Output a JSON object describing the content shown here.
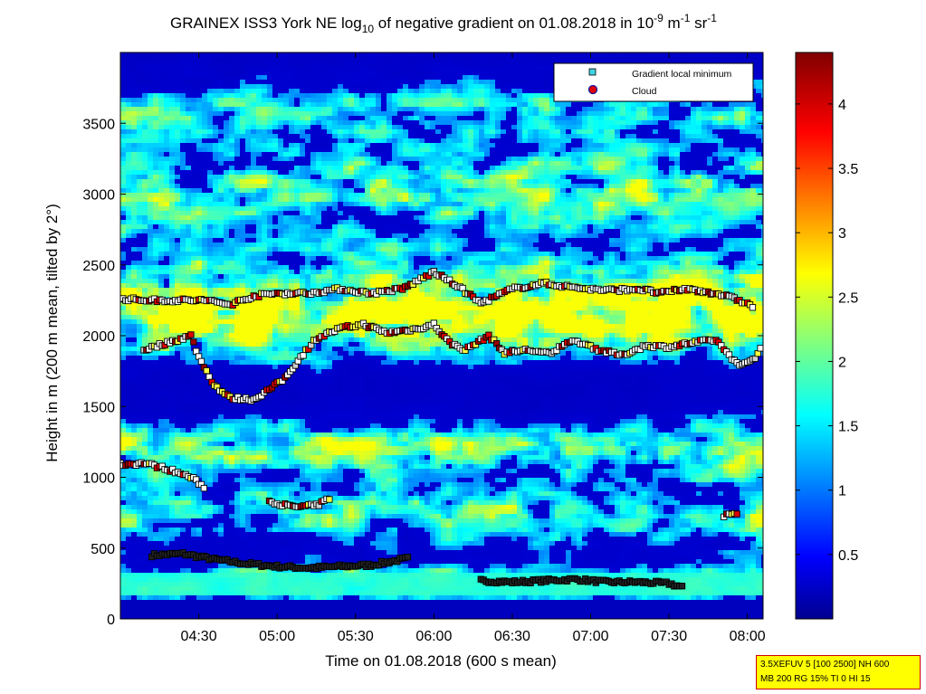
{
  "chart_data": {
    "type": "heatmap",
    "title": {
      "prefix": "GRAINEX ISS3 York NE log",
      "subscript": "10",
      "middle": " of negative gradient on 01.08.2018 in 10",
      "sup1": "-9",
      "middle2": " m",
      "sup2": "-1",
      "middle3": " sr",
      "sup3": "-1"
    },
    "xlabel": "Time on 01.08.2018 (600 s mean)",
    "ylabel": "Height in m (200 m mean, tilted by 2°)",
    "x_range_hours": [
      4.0,
      8.1
    ],
    "x_ticks": [
      {
        "value": 4.5,
        "label": "04:30"
      },
      {
        "value": 5.0,
        "label": "05:00"
      },
      {
        "value": 5.5,
        "label": "05:30"
      },
      {
        "value": 6.0,
        "label": "06:00"
      },
      {
        "value": 6.5,
        "label": "06:30"
      },
      {
        "value": 7.0,
        "label": "07:00"
      },
      {
        "value": 7.5,
        "label": "07:30"
      },
      {
        "value": 8.0,
        "label": "08:00"
      }
    ],
    "ylim": [
      0,
      4000
    ],
    "y_ticks": [
      0,
      500,
      1000,
      1500,
      2000,
      2500,
      3000,
      3500
    ],
    "colorbar": {
      "range": [
        0,
        4.4
      ],
      "ticks": [
        0.5,
        1,
        1.5,
        2,
        2.5,
        3,
        3.5,
        4
      ],
      "colormap": "jet"
    },
    "legend": {
      "placement": "top-right",
      "entries": [
        {
          "label": "Gradient local minimum",
          "marker": "square",
          "color": "#3fd3e0"
        },
        {
          "label": "Cloud",
          "marker": "circle",
          "color": "#e00000"
        }
      ]
    },
    "layers": [
      {
        "name": "layer-1",
        "points": [
          [
            4.2,
            450
          ],
          [
            4.4,
            460
          ],
          [
            4.6,
            420
          ],
          [
            4.8,
            390
          ],
          [
            5.0,
            370
          ],
          [
            5.2,
            360
          ],
          [
            5.4,
            370
          ],
          [
            5.6,
            380
          ],
          [
            5.75,
            410
          ],
          [
            5.85,
            430
          ]
        ]
      },
      {
        "name": "layer-2",
        "points": [
          [
            6.3,
            270
          ],
          [
            6.5,
            260
          ],
          [
            6.7,
            270
          ],
          [
            6.9,
            280
          ],
          [
            7.1,
            260
          ],
          [
            7.3,
            260
          ],
          [
            7.5,
            250
          ],
          [
            7.6,
            220
          ]
        ]
      },
      {
        "name": "layer-3",
        "points": [
          [
            4.0,
            1090
          ],
          [
            4.15,
            1100
          ],
          [
            4.3,
            1060
          ],
          [
            4.45,
            1000
          ],
          [
            4.55,
            920
          ]
        ]
      },
      {
        "name": "layer-4",
        "points": [
          [
            4.95,
            830
          ],
          [
            5.1,
            790
          ],
          [
            5.25,
            800
          ],
          [
            5.35,
            860
          ]
        ]
      },
      {
        "name": "layer-5",
        "points": [
          [
            7.85,
            730
          ],
          [
            7.95,
            750
          ]
        ]
      },
      {
        "name": "layer-6",
        "points": [
          [
            4.15,
            1900
          ],
          [
            4.3,
            1950
          ],
          [
            4.45,
            2000
          ],
          [
            4.5,
            1850
          ],
          [
            4.6,
            1650
          ],
          [
            4.7,
            1560
          ],
          [
            4.85,
            1550
          ],
          [
            4.95,
            1620
          ],
          [
            5.05,
            1700
          ],
          [
            5.15,
            1850
          ],
          [
            5.25,
            1980
          ],
          [
            5.4,
            2050
          ],
          [
            5.55,
            2080
          ],
          [
            5.7,
            2020
          ],
          [
            5.9,
            2050
          ],
          [
            6.0,
            2080
          ],
          [
            6.1,
            1950
          ],
          [
            6.2,
            1900
          ],
          [
            6.35,
            2000
          ],
          [
            6.45,
            1880
          ],
          [
            6.6,
            1900
          ],
          [
            6.75,
            1870
          ],
          [
            6.85,
            1960
          ],
          [
            6.95,
            1950
          ],
          [
            7.05,
            1900
          ],
          [
            7.2,
            1860
          ],
          [
            7.35,
            1930
          ],
          [
            7.5,
            1920
          ],
          [
            7.65,
            1950
          ],
          [
            7.8,
            1970
          ],
          [
            7.95,
            1780
          ],
          [
            8.05,
            1850
          ],
          [
            8.1,
            1930
          ]
        ]
      },
      {
        "name": "layer-7",
        "points": [
          [
            4.0,
            2260
          ],
          [
            4.2,
            2250
          ],
          [
            4.4,
            2250
          ],
          [
            4.55,
            2250
          ],
          [
            4.7,
            2220
          ],
          [
            4.85,
            2280
          ],
          [
            5.0,
            2300
          ],
          [
            5.2,
            2300
          ],
          [
            5.4,
            2330
          ],
          [
            5.6,
            2300
          ],
          [
            5.8,
            2330
          ],
          [
            6.0,
            2450
          ],
          [
            6.15,
            2350
          ],
          [
            6.3,
            2230
          ],
          [
            6.5,
            2330
          ],
          [
            6.7,
            2370
          ],
          [
            6.9,
            2340
          ],
          [
            7.1,
            2320
          ],
          [
            7.3,
            2330
          ],
          [
            7.45,
            2300
          ],
          [
            7.6,
            2330
          ],
          [
            7.8,
            2300
          ],
          [
            7.95,
            2250
          ],
          [
            8.05,
            2200
          ]
        ]
      }
    ]
  },
  "info_box": {
    "line1": "3.5XEFUV 5 [100 2500] NH 600",
    "line2": "MB 200 RG 15% TI 0 HI 15"
  }
}
